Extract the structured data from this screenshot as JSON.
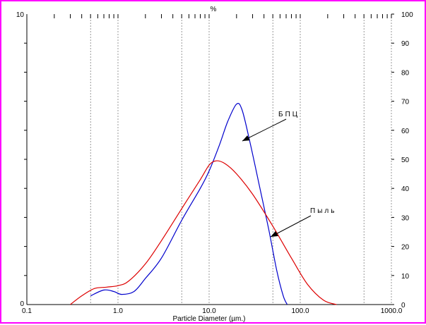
{
  "chart_data": {
    "type": "line",
    "title": "%",
    "xlabel": "Particle Diameter (µm.)",
    "x_scale": "log",
    "xlim": [
      0.1,
      1000
    ],
    "x_ticks": [
      "0.1",
      "1.0",
      "10.0",
      "100.0",
      "1000.0"
    ],
    "left_axis": {
      "ylim": [
        0,
        10
      ],
      "ticks": [
        "0",
        "10"
      ]
    },
    "right_axis": {
      "ylim": [
        0,
        100
      ],
      "ticks": [
        "0",
        "10",
        "20",
        "30",
        "40",
        "50",
        "60",
        "70",
        "80",
        "90",
        "100"
      ]
    },
    "grid": "vertical dotted lines",
    "series": [
      {
        "name": "БПЦ",
        "color": "#0000cc",
        "x": [
          0.5,
          0.7,
          0.9,
          1.1,
          1.5,
          2.0,
          3.0,
          5.0,
          8.0,
          10.0,
          13.0,
          16.0,
          20.0,
          23.0,
          28.0,
          35.0,
          45.0,
          55.0,
          65.0,
          72.0
        ],
        "y": [
          0.3,
          0.5,
          0.45,
          0.35,
          0.45,
          0.9,
          1.6,
          2.9,
          4.0,
          4.6,
          5.5,
          6.3,
          6.9,
          6.7,
          5.6,
          4.2,
          2.6,
          1.2,
          0.3,
          0
        ]
      },
      {
        "name": "Пыль",
        "color": "#dd0000",
        "x": [
          0.3,
          0.4,
          0.55,
          0.75,
          1.0,
          1.3,
          2.0,
          3.0,
          5.0,
          8.0,
          10.0,
          12.0,
          15.0,
          20.0,
          30.0,
          50.0,
          80.0,
          120.0,
          180.0,
          250.0
        ],
        "y": [
          0,
          0.3,
          0.55,
          0.6,
          0.65,
          0.8,
          1.4,
          2.2,
          3.3,
          4.3,
          4.8,
          4.95,
          4.85,
          4.5,
          3.8,
          2.7,
          1.6,
          0.7,
          0.15,
          0
        ]
      }
    ],
    "annotations": [
      {
        "text": "БПЦ",
        "target_series": "БПЦ"
      },
      {
        "text": "Пыль",
        "target_series": "Пыль"
      }
    ]
  }
}
